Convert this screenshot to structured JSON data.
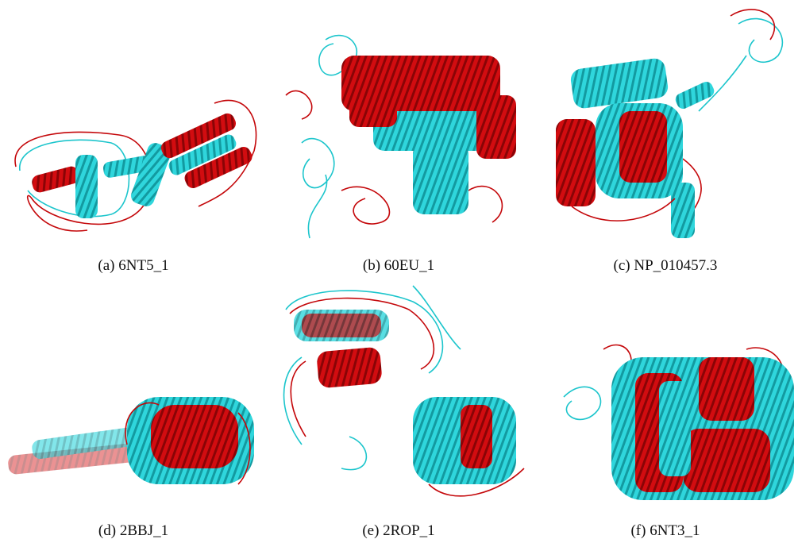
{
  "panels": [
    {
      "caption": "(a) 6NT5_1"
    },
    {
      "caption": "(b) 60EU_1"
    },
    {
      "caption": "(c) NP_010457.3"
    },
    {
      "caption": "(d) 2BBJ_1"
    },
    {
      "caption": "(e) 2ROP_1"
    },
    {
      "caption": "(f) 6NT3_1"
    }
  ]
}
